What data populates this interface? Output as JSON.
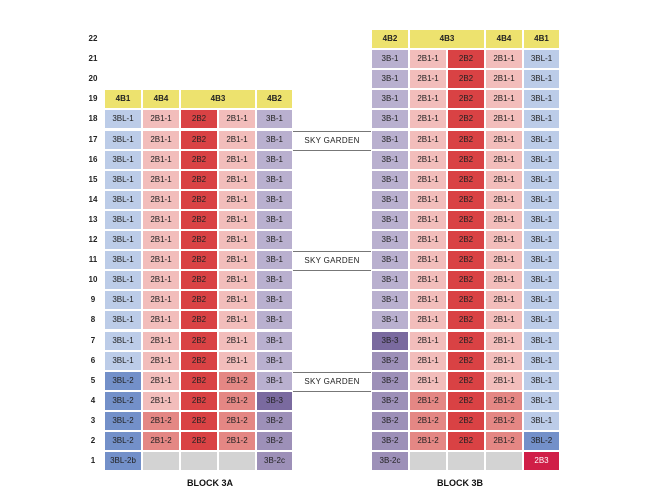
{
  "colors": {
    "4B1": "#ede26e",
    "4B2": "#ede26e",
    "4B3": "#ede26e",
    "4B4": "#ede26e",
    "3BL-1": "#bccce8",
    "3BL-2": "#7390c9",
    "3BL-2b": "#7390c9",
    "2B1-1": "#f2bdbb",
    "2B1-2": "#e48784",
    "2B2": "#d94244",
    "2B3": "#d01e47",
    "3B-1": "#b9b0cf",
    "3B-2": "#9d90b8",
    "3B-2c": "#9d90b8",
    "3B-3": "#7a6a9f",
    "empty": "#d3d3d3"
  },
  "floors": [
    "22",
    "21",
    "20",
    "19",
    "18",
    "17",
    "16",
    "15",
    "14",
    "13",
    "12",
    "11",
    "10",
    "9",
    "8",
    "7",
    "6",
    "5",
    "4",
    "3",
    "2",
    "1"
  ],
  "sky_garden_label": "SKY GARDEN",
  "sky_garden_floors": [
    "17",
    "11",
    "5"
  ],
  "block3a": {
    "label": "BLOCK 3A",
    "rows": {
      "19": [
        "4B1",
        "4B4",
        "4B3",
        "4B2"
      ],
      "18": [
        "3BL-1",
        "2B1-1",
        "2B2",
        "2B1-1",
        "3B-1"
      ],
      "17": [
        "3BL-1",
        "2B1-1",
        "2B2",
        "2B1-1",
        "3B-1"
      ],
      "16": [
        "3BL-1",
        "2B1-1",
        "2B2",
        "2B1-1",
        "3B-1"
      ],
      "15": [
        "3BL-1",
        "2B1-1",
        "2B2",
        "2B1-1",
        "3B-1"
      ],
      "14": [
        "3BL-1",
        "2B1-1",
        "2B2",
        "2B1-1",
        "3B-1"
      ],
      "13": [
        "3BL-1",
        "2B1-1",
        "2B2",
        "2B1-1",
        "3B-1"
      ],
      "12": [
        "3BL-1",
        "2B1-1",
        "2B2",
        "2B1-1",
        "3B-1"
      ],
      "11": [
        "3BL-1",
        "2B1-1",
        "2B2",
        "2B1-1",
        "3B-1"
      ],
      "10": [
        "3BL-1",
        "2B1-1",
        "2B2",
        "2B1-1",
        "3B-1"
      ],
      "9": [
        "3BL-1",
        "2B1-1",
        "2B2",
        "2B1-1",
        "3B-1"
      ],
      "8": [
        "3BL-1",
        "2B1-1",
        "2B2",
        "2B1-1",
        "3B-1"
      ],
      "7": [
        "3BL-1",
        "2B1-1",
        "2B2",
        "2B1-1",
        "3B-1"
      ],
      "6": [
        "3BL-1",
        "2B1-1",
        "2B2",
        "2B1-1",
        "3B-1"
      ],
      "5": [
        "3BL-2",
        "2B1-1",
        "2B2",
        "2B1-2",
        "3B-1"
      ],
      "4": [
        "3BL-2",
        "2B1-1",
        "2B2",
        "2B1-2",
        "3B-3"
      ],
      "3": [
        "3BL-2",
        "2B1-2",
        "2B2",
        "2B1-2",
        "3B-2"
      ],
      "2": [
        "3BL-2",
        "2B1-2",
        "2B2",
        "2B1-2",
        "3B-2"
      ],
      "1": [
        "3BL-2b",
        "",
        "",
        "",
        "3B-2c"
      ]
    }
  },
  "block3b": {
    "label": "BLOCK 3B",
    "rows": {
      "22": [
        "4B2",
        "4B3",
        "4B4",
        "4B1"
      ],
      "21": [
        "3B-1",
        "2B1-1",
        "2B2",
        "2B1-1",
        "3BL-1"
      ],
      "20": [
        "3B-1",
        "2B1-1",
        "2B2",
        "2B1-1",
        "3BL-1"
      ],
      "19": [
        "3B-1",
        "2B1-1",
        "2B2",
        "2B1-1",
        "3BL-1"
      ],
      "18": [
        "3B-1",
        "2B1-1",
        "2B2",
        "2B1-1",
        "3BL-1"
      ],
      "17": [
        "3B-1",
        "2B1-1",
        "2B2",
        "2B1-1",
        "3BL-1"
      ],
      "16": [
        "3B-1",
        "2B1-1",
        "2B2",
        "2B1-1",
        "3BL-1"
      ],
      "15": [
        "3B-1",
        "2B1-1",
        "2B2",
        "2B1-1",
        "3BL-1"
      ],
      "14": [
        "3B-1",
        "2B1-1",
        "2B2",
        "2B1-1",
        "3BL-1"
      ],
      "13": [
        "3B-1",
        "2B1-1",
        "2B2",
        "2B1-1",
        "3BL-1"
      ],
      "12": [
        "3B-1",
        "2B1-1",
        "2B2",
        "2B1-1",
        "3BL-1"
      ],
      "11": [
        "3B-1",
        "2B1-1",
        "2B2",
        "2B1-1",
        "3BL-1"
      ],
      "10": [
        "3B-1",
        "2B1-1",
        "2B2",
        "2B1-1",
        "3BL-1"
      ],
      "9": [
        "3B-1",
        "2B1-1",
        "2B2",
        "2B1-1",
        "3BL-1"
      ],
      "8": [
        "3B-1",
        "2B1-1",
        "2B2",
        "2B1-1",
        "3BL-1"
      ],
      "7": [
        "3B-3",
        "2B1-1",
        "2B2",
        "2B1-1",
        "3BL-1"
      ],
      "6": [
        "3B-2",
        "2B1-1",
        "2B2",
        "2B1-1",
        "3BL-1"
      ],
      "5": [
        "3B-2",
        "2B1-1",
        "2B2",
        "2B1-1",
        "3BL-1"
      ],
      "4": [
        "3B-2",
        "2B1-2",
        "2B2",
        "2B1-2",
        "3BL-1"
      ],
      "3": [
        "3B-2",
        "2B1-2",
        "2B2",
        "2B1-2",
        "3BL-1"
      ],
      "2": [
        "3B-2",
        "2B1-2",
        "2B2",
        "2B1-2",
        "3BL-2"
      ],
      "1": [
        "3B-2c",
        "",
        "",
        "",
        "2B3"
      ]
    }
  }
}
